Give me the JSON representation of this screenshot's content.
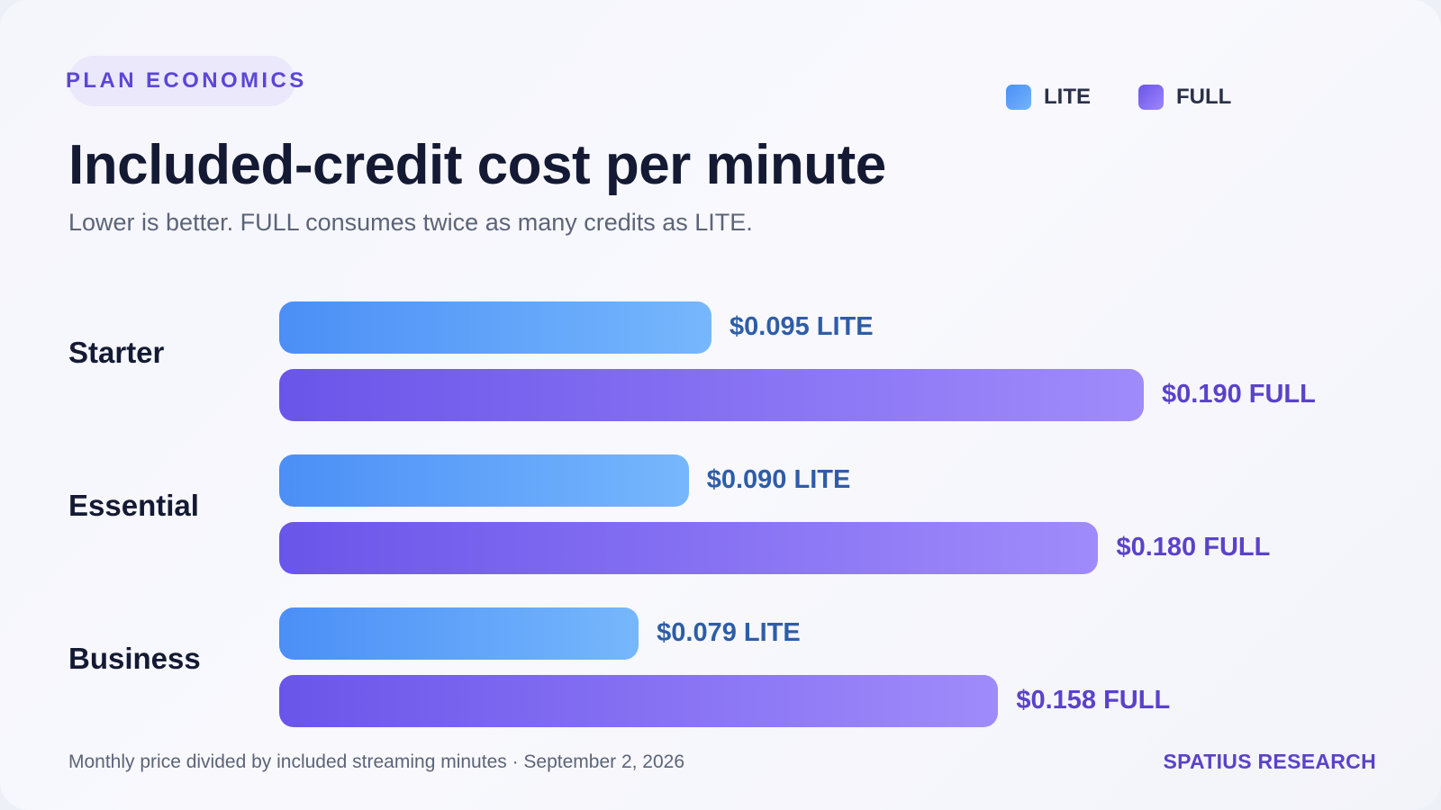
{
  "header": {
    "eyebrow": "PLAN ECONOMICS",
    "title": "Included-credit cost per minute",
    "subtitle": "Lower is better. FULL consumes twice as many credits as LITE."
  },
  "footer": {
    "note": "Monthly price divided by included streaming minutes · September 2, 2026",
    "brand": "SPATIUS RESEARCH"
  },
  "colors": {
    "lite": "#4b8ff7",
    "full": "#6a55ea",
    "accent": "#5b46d6"
  },
  "chart_data": {
    "type": "bar",
    "orientation": "horizontal",
    "grid": false,
    "legend_placement": "top-right",
    "categories": [
      "Starter",
      "Essential",
      "Business"
    ],
    "series": [
      {
        "name": "LITE",
        "values": [
          0.095,
          0.09,
          0.079
        ],
        "labels": [
          "$0.095 LITE",
          "$0.090 LITE",
          "$0.079 LITE"
        ]
      },
      {
        "name": "FULL",
        "values": [
          0.19,
          0.18,
          0.158
        ],
        "labels": [
          "$0.190 FULL",
          "$0.180 FULL",
          "$0.158 FULL"
        ]
      }
    ],
    "xlim": [
      0,
      0.19
    ]
  }
}
